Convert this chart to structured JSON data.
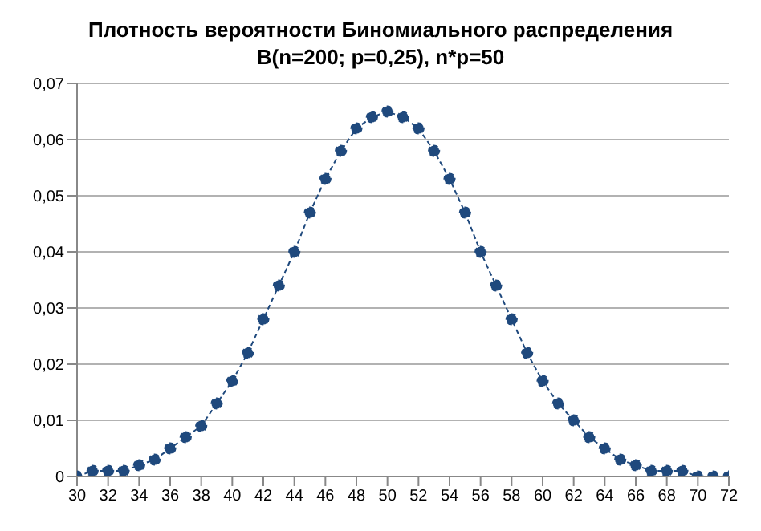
{
  "chart_data": {
    "type": "line",
    "title": "Плотность вероятности Биномиального распределения",
    "subtitle": "B(n=200; p=0,25), n*p=50",
    "x": [
      30,
      31,
      32,
      33,
      34,
      35,
      36,
      37,
      38,
      39,
      40,
      41,
      42,
      43,
      44,
      45,
      46,
      47,
      48,
      49,
      50,
      51,
      52,
      53,
      54,
      55,
      56,
      57,
      58,
      59,
      60,
      61,
      62,
      63,
      64,
      65,
      66,
      67,
      68,
      69,
      70,
      71,
      72
    ],
    "series": [
      {
        "color": "#1f497d",
        "values": [
          0.0,
          0.001,
          0.001,
          0.001,
          0.002,
          0.003,
          0.005,
          0.007,
          0.009,
          0.013,
          0.017,
          0.022,
          0.028,
          0.034,
          0.04,
          0.047,
          0.053,
          0.058,
          0.062,
          0.064,
          0.065,
          0.064,
          0.062,
          0.058,
          0.053,
          0.047,
          0.04,
          0.034,
          0.028,
          0.022,
          0.017,
          0.013,
          0.01,
          0.007,
          0.005,
          0.003,
          0.002,
          0.001,
          0.001,
          0.001,
          0.0,
          0.0,
          0.0
        ]
      }
    ],
    "xlim": [
      30,
      72
    ],
    "xticks": [
      30,
      32,
      34,
      36,
      38,
      40,
      42,
      44,
      46,
      48,
      50,
      52,
      54,
      56,
      58,
      60,
      62,
      64,
      66,
      68,
      70,
      72
    ],
    "ylim": [
      0,
      0.07
    ],
    "yticks": [
      0,
      {
        "value": 0.01,
        "label": "0,01"
      },
      {
        "value": 0.02,
        "label": "0,02"
      },
      {
        "value": 0.03,
        "label": "0,03"
      },
      {
        "value": 0.04,
        "label": "0,04"
      },
      {
        "value": 0.05,
        "label": "0,05"
      },
      {
        "value": 0.06,
        "label": "0,06"
      },
      {
        "value": 0.07,
        "label": "0,07"
      }
    ],
    "grid": "y",
    "legend": false,
    "marker": "circle",
    "line_style": "dashed"
  }
}
